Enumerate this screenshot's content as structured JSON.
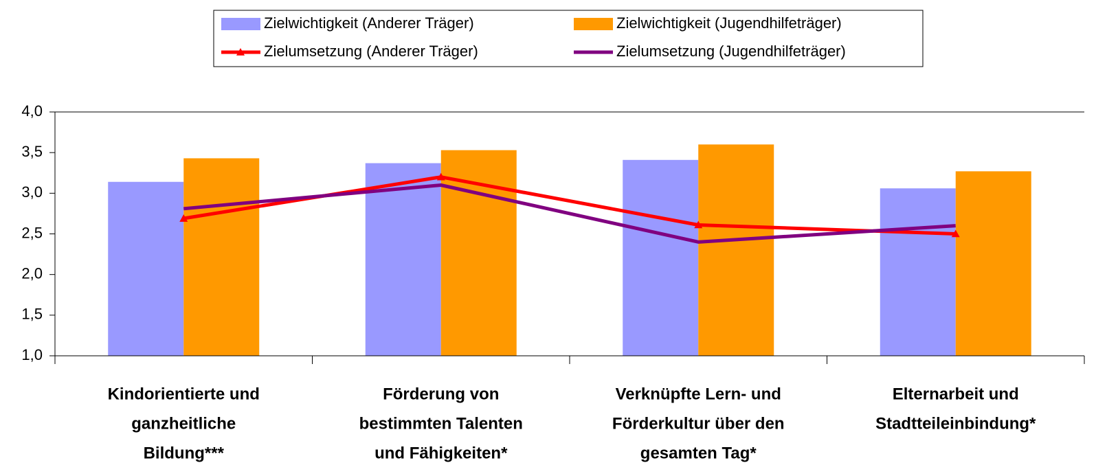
{
  "chart_data": {
    "type": "bar",
    "categories": [
      [
        "Kindorientierte und",
        "ganzheitliche",
        "Bildung***"
      ],
      [
        "Förderung von",
        "bestimmten Talenten",
        "und Fähigkeiten*"
      ],
      [
        "Verknüpfte Lern- und",
        "Förderkultur über den",
        "gesamten Tag*"
      ],
      [
        "Elternarbeit und",
        "Stadtteileinbindung*"
      ]
    ],
    "series": [
      {
        "name": "Zielwichtigkeit (Anderer Träger)",
        "type": "bar",
        "color": "#9999ff",
        "values": [
          3.14,
          3.37,
          3.41,
          3.06
        ]
      },
      {
        "name": "Zielwichtigkeit (Jugendhilfeträger)",
        "type": "bar",
        "color": "#ff9900",
        "values": [
          3.43,
          3.53,
          3.6,
          3.27
        ]
      },
      {
        "name": "Zielumsetzung (Anderer Träger)",
        "type": "line",
        "color": "#ff0000",
        "marker": "triangle",
        "values": [
          2.69,
          3.2,
          2.61,
          2.5
        ]
      },
      {
        "name": "Zielumsetzung (Jugendhilfeträger)",
        "type": "line",
        "color": "#800080",
        "values": [
          2.81,
          3.1,
          2.4,
          2.6
        ]
      }
    ],
    "ylim": [
      1,
      4
    ],
    "yticks": [
      {
        "value": 1,
        "label": "1,0"
      },
      {
        "value": 1.5,
        "label": "1,5"
      },
      {
        "value": 2,
        "label": "2,0"
      },
      {
        "value": 2.5,
        "label": "2,5"
      },
      {
        "value": 3,
        "label": "3,0"
      },
      {
        "value": 3.5,
        "label": "3,5"
      },
      {
        "value": 4,
        "label": "4,0"
      }
    ],
    "legend": "top"
  }
}
